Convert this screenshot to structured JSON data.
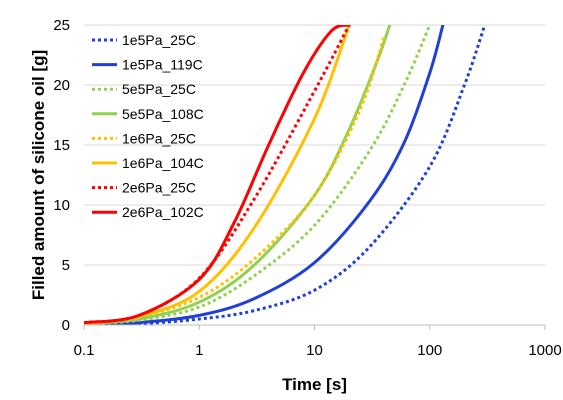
{
  "chart_data": {
    "type": "line",
    "title": "",
    "xlabel": "Time [s]",
    "ylabel": "Filled amount of silicone oil [g]",
    "xscale": "log",
    "xlim": [
      0.1,
      1000
    ],
    "ylim": [
      0,
      25
    ],
    "xticks": [
      0.1,
      1,
      10,
      100,
      1000
    ],
    "xtick_labels": [
      "0.1",
      "1",
      "10",
      "100",
      "1000"
    ],
    "yticks": [
      0,
      5,
      10,
      15,
      20,
      25
    ],
    "ytick_labels": [
      "0",
      "5",
      "10",
      "15",
      "20",
      "25"
    ],
    "grid": "horizontal",
    "legend_position": "top-left",
    "series": [
      {
        "name": "1e5Pa_25C",
        "color": "#1f3fd6",
        "style": "dotted",
        "x": [
          0.1,
          0.3,
          1,
          3,
          10,
          30,
          100,
          200,
          300
        ],
        "y": [
          0,
          0.1,
          0.5,
          1.2,
          2.9,
          6.5,
          13.2,
          20,
          25
        ]
      },
      {
        "name": "1e5Pa_119C",
        "color": "#1f3fd6",
        "style": "solid",
        "x": [
          0.1,
          0.3,
          1,
          3,
          10,
          30,
          60,
          100,
          130
        ],
        "y": [
          0,
          0.2,
          0.8,
          2.2,
          5.2,
          10.3,
          15.2,
          21,
          25
        ]
      },
      {
        "name": "5e5Pa_25C",
        "color": "#92d050",
        "style": "dotted",
        "x": [
          0.1,
          0.3,
          1,
          3,
          10,
          30,
          60,
          100
        ],
        "y": [
          0.1,
          0.4,
          1.5,
          4.1,
          8.3,
          14.5,
          20,
          25
        ]
      },
      {
        "name": "5e5Pa_108C",
        "color": "#92d050",
        "style": "solid",
        "x": [
          0.1,
          0.3,
          1,
          3,
          10,
          20,
          35,
          45
        ],
        "y": [
          0.1,
          0.5,
          1.9,
          5,
          10.8,
          16.3,
          22,
          25
        ]
      },
      {
        "name": "1e6Pa_25C",
        "color": "#ffc000",
        "style": "dotted",
        "x": [
          0.1,
          0.3,
          1,
          3,
          10,
          25,
          40
        ],
        "y": [
          0.1,
          0.7,
          2.3,
          5.5,
          10.8,
          18,
          24
        ]
      },
      {
        "name": "1e6Pa_104C",
        "color": "#ffc000",
        "style": "solid",
        "x": [
          0.1,
          0.3,
          1,
          3,
          10,
          20
        ],
        "y": [
          0.1,
          0.7,
          2.8,
          8.1,
          17.2,
          25
        ]
      },
      {
        "name": "2e6Pa_25C",
        "color": "#ff0000",
        "style": "dotted",
        "x": [
          0.1,
          0.3,
          1,
          3,
          10,
          20
        ],
        "y": [
          0.2,
          0.8,
          3.9,
          10.5,
          19.5,
          25
        ]
      },
      {
        "name": "2e6Pa_102C",
        "color": "#ff0000",
        "style": "solid",
        "x": [
          0.1,
          0.3,
          1,
          2,
          4,
          8,
          14,
          20
        ],
        "y": [
          0.2,
          0.8,
          3.8,
          8.5,
          15,
          21,
          24.5,
          25
        ]
      }
    ]
  }
}
